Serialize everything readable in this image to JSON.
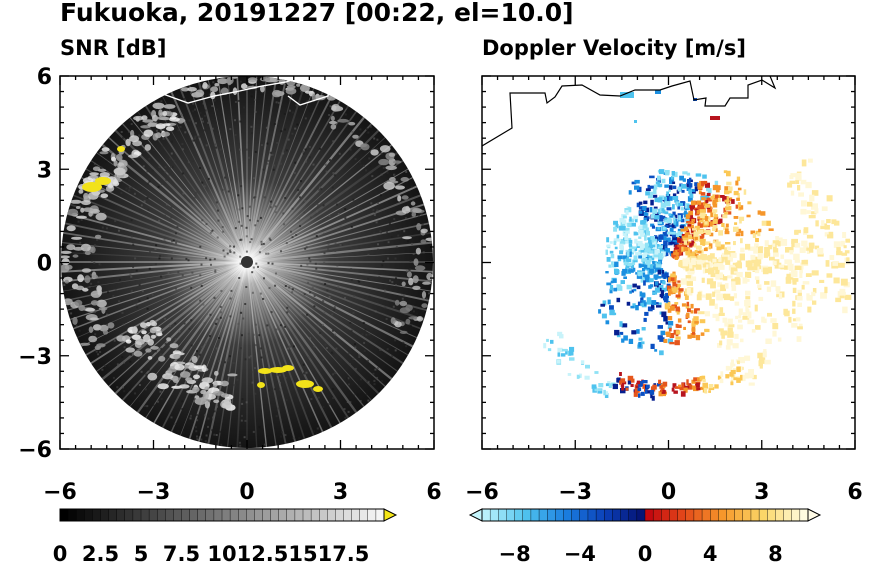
{
  "title": "Fukuoka, 20191227 [00:22, el=10.0]",
  "chart_data": [
    {
      "type": "heatmap",
      "title": "SNR [dB]",
      "xlim": [
        -6,
        6
      ],
      "ylim": [
        -6,
        6
      ],
      "x_ticks": [
        "−6",
        "−3",
        "0",
        "3",
        "6"
      ],
      "y_ticks": [
        "6",
        "3",
        "0",
        "−3",
        "−6"
      ],
      "colorbar": {
        "ticks": [
          "0",
          "2.5",
          "5",
          "7.5",
          "10",
          "12.5",
          "15",
          "17.5"
        ],
        "range": [
          0,
          20
        ],
        "steps": 40,
        "extend": "max",
        "extend_color": "#f5e616"
      }
    },
    {
      "type": "heatmap",
      "title": "Doppler Velocity [m/s]",
      "xlim": [
        -6,
        6
      ],
      "ylim": [
        -6,
        6
      ],
      "x_ticks": [
        "−6",
        "−3",
        "0",
        "3",
        "6"
      ],
      "y_ticks": [],
      "colorbar": {
        "ticks": [
          "−8",
          "−4",
          "0",
          "4",
          "8"
        ],
        "range": [
          -10,
          10
        ],
        "steps": 40,
        "extend": "both",
        "extend_low_color": "#c4f4fb",
        "extend_high_color": "#fffbe6"
      }
    }
  ]
}
